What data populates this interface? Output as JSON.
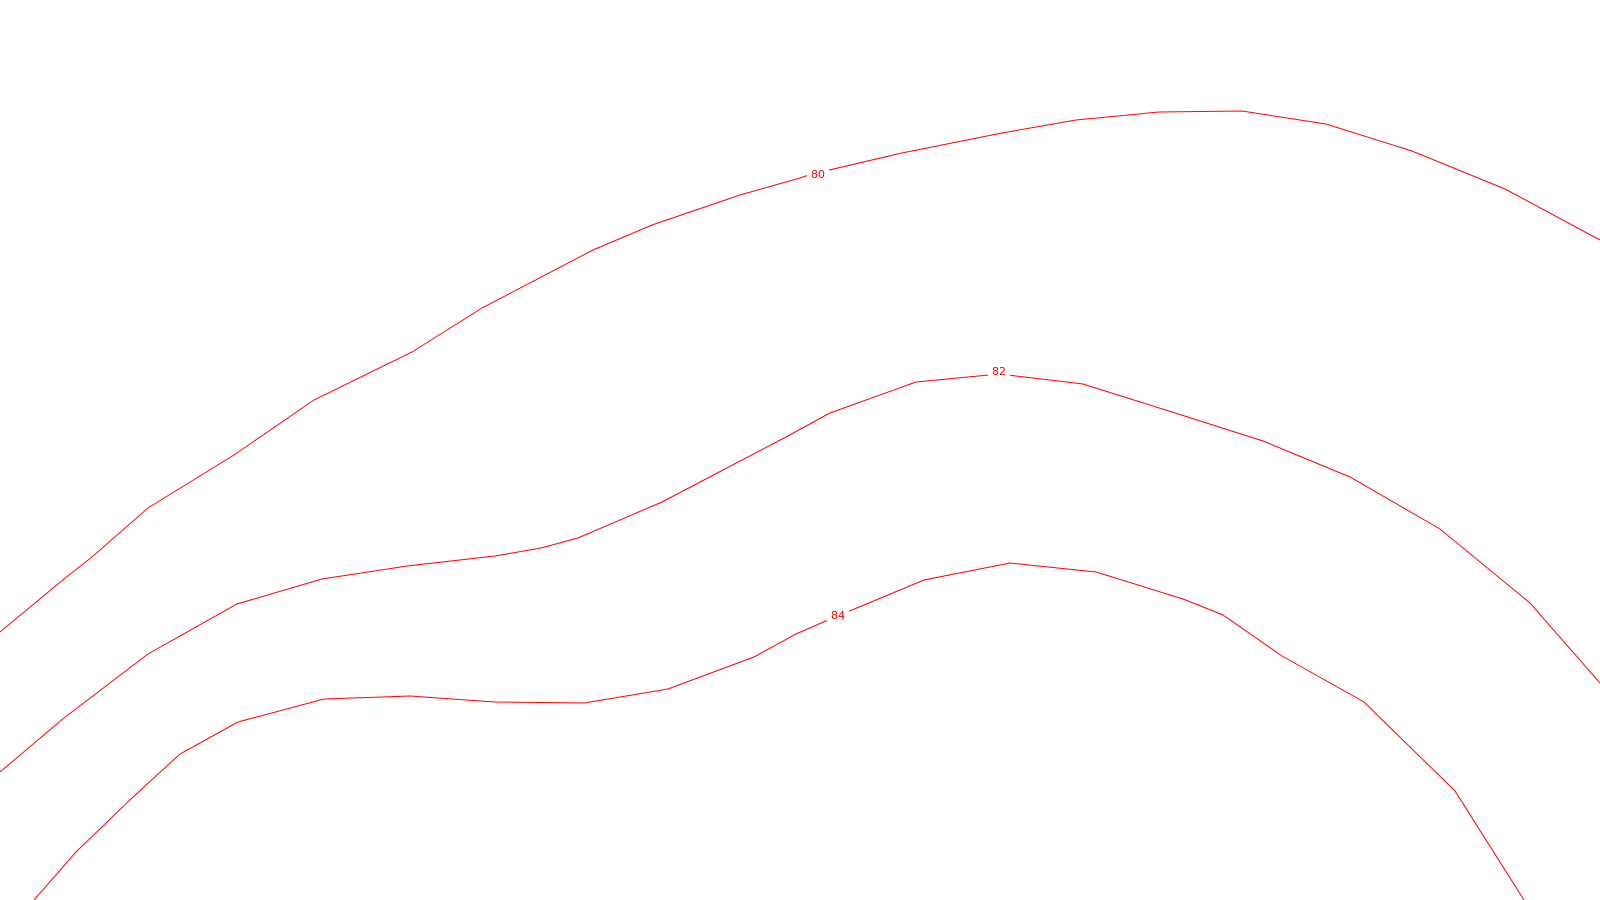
{
  "map": {
    "contour_color": "#ff0000",
    "background_color": "#ffffff",
    "contours": [
      {
        "value": "80",
        "label": "80"
      },
      {
        "value": "82",
        "label": "82"
      },
      {
        "value": "84",
        "label": "84"
      }
    ]
  }
}
